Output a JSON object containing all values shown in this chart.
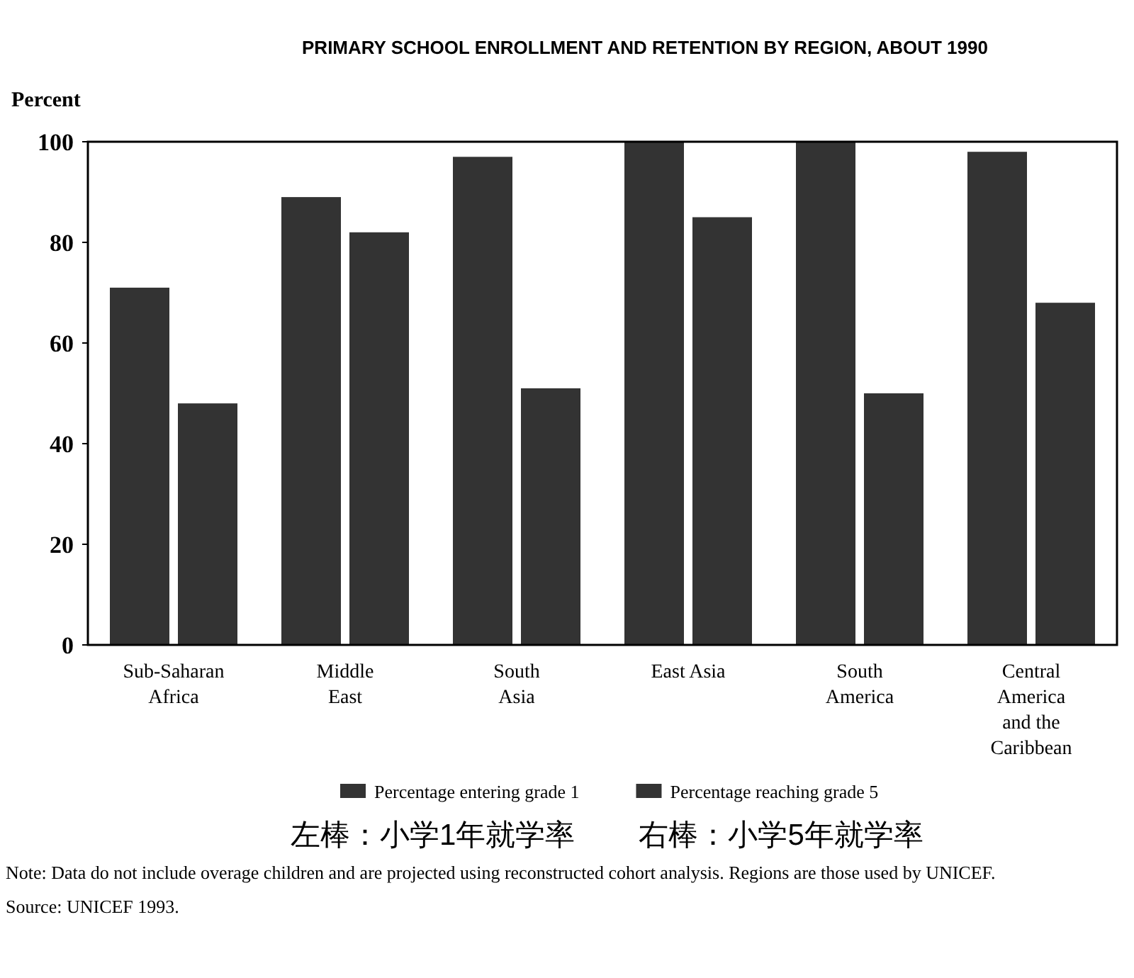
{
  "chart_data": {
    "type": "bar",
    "title": "PRIMARY SCHOOL ENROLLMENT AND RETENTION BY REGION, ABOUT 1990",
    "ylabel": "Percent",
    "categories": [
      "Sub-Saharan Africa",
      "Middle East",
      "South Asia",
      "East Asia",
      "South America",
      "Central America and the Caribbean"
    ],
    "series": [
      {
        "name": "Percentage entering grade 1",
        "color": "#333333",
        "values": [
          71,
          89,
          97,
          100,
          100,
          98
        ]
      },
      {
        "name": "Percentage reaching grade 5",
        "color": "#333333",
        "values": [
          48,
          82,
          51,
          85,
          50,
          68
        ]
      }
    ],
    "ylim": [
      0,
      100
    ],
    "yticks": [
      0,
      20,
      40,
      60,
      80,
      100
    ],
    "grid": false,
    "legend": "bottom",
    "annotations": [
      "左棒：小学1年就学率",
      "右棒：小学5年就学率",
      "Note: Data do not include overage children and are projected using reconstructed cohort analysis. Regions are those used by UNICEF.",
      "Source: UNICEF 1993."
    ]
  }
}
